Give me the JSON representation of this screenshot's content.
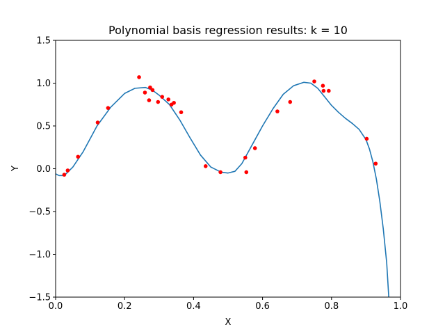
{
  "chart_data": {
    "type": "scatter",
    "title": "Polynomial basis regression results: k = 10",
    "xlabel": "X",
    "ylabel": "Y",
    "xlim": [
      0.0,
      1.0
    ],
    "ylim": [
      -1.5,
      1.5
    ],
    "xticks": [
      0.0,
      0.2,
      0.4,
      0.6,
      0.8,
      1.0
    ],
    "yticks": [
      -1.5,
      -1.0,
      -0.5,
      0.0,
      0.5,
      1.0,
      1.5
    ],
    "xtick_labels": [
      "0.0",
      "0.2",
      "0.4",
      "0.6",
      "0.8",
      "1.0"
    ],
    "ytick_labels": [
      "−1.5",
      "−1.0",
      "−0.5",
      "0.0",
      "0.5",
      "1.0",
      "1.5"
    ],
    "grid": false,
    "series": [
      {
        "kind": "points",
        "color": "#ff0000",
        "x": [
          0.025,
          0.035,
          0.065,
          0.122,
          0.152,
          0.242,
          0.259,
          0.271,
          0.274,
          0.281,
          0.297,
          0.309,
          0.327,
          0.336,
          0.343,
          0.364,
          0.435,
          0.478,
          0.55,
          0.553,
          0.578,
          0.643,
          0.68,
          0.75,
          0.775,
          0.777,
          0.792,
          0.902,
          0.928
        ],
        "y": [
          -0.07,
          -0.02,
          0.14,
          0.54,
          0.71,
          1.07,
          0.89,
          0.8,
          0.95,
          0.92,
          0.78,
          0.84,
          0.81,
          0.75,
          0.77,
          0.66,
          0.03,
          -0.04,
          0.13,
          -0.04,
          0.24,
          0.67,
          0.78,
          1.02,
          0.97,
          0.91,
          0.91,
          0.35,
          0.06
        ]
      },
      {
        "kind": "line",
        "color": "#1f77b4",
        "x": [
          0.0,
          0.01,
          0.02,
          0.03,
          0.05,
          0.08,
          0.12,
          0.16,
          0.2,
          0.23,
          0.26,
          0.28,
          0.3,
          0.33,
          0.36,
          0.39,
          0.42,
          0.45,
          0.48,
          0.5,
          0.52,
          0.54,
          0.57,
          0.6,
          0.63,
          0.66,
          0.69,
          0.72,
          0.74,
          0.76,
          0.78,
          0.8,
          0.82,
          0.84,
          0.86,
          0.88,
          0.9,
          0.91,
          0.92,
          0.93,
          0.94,
          0.95,
          0.96,
          0.966
        ],
        "y": [
          -0.06,
          -0.08,
          -0.08,
          -0.06,
          0.02,
          0.2,
          0.5,
          0.72,
          0.88,
          0.94,
          0.95,
          0.92,
          0.86,
          0.75,
          0.57,
          0.36,
          0.16,
          0.02,
          -0.04,
          -0.05,
          -0.03,
          0.06,
          0.28,
          0.5,
          0.7,
          0.87,
          0.97,
          1.01,
          1.0,
          0.94,
          0.84,
          0.74,
          0.66,
          0.59,
          0.53,
          0.46,
          0.34,
          0.23,
          0.08,
          -0.12,
          -0.38,
          -0.7,
          -1.1,
          -1.5
        ]
      }
    ]
  }
}
